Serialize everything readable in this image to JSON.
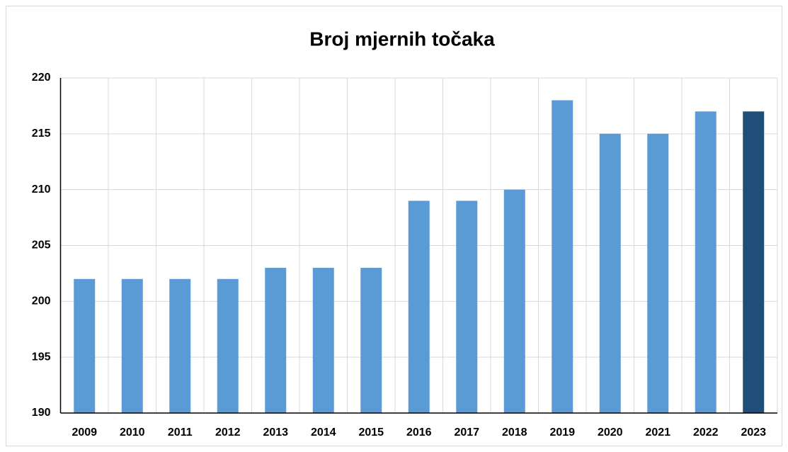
{
  "chart_data": {
    "type": "bar",
    "title": "Broj mjernih točaka",
    "categories": [
      "2009",
      "2010",
      "2011",
      "2012",
      "2013",
      "2014",
      "2015",
      "2016",
      "2017",
      "2018",
      "2019",
      "2020",
      "2021",
      "2022",
      "2023"
    ],
    "values": [
      202,
      202,
      202,
      202,
      203,
      203,
      203,
      209,
      209,
      210,
      218,
      215,
      215,
      217,
      217
    ],
    "colors": [
      "#5b9bd5",
      "#5b9bd5",
      "#5b9bd5",
      "#5b9bd5",
      "#5b9bd5",
      "#5b9bd5",
      "#5b9bd5",
      "#5b9bd5",
      "#5b9bd5",
      "#5b9bd5",
      "#5b9bd5",
      "#5b9bd5",
      "#5b9bd5",
      "#5b9bd5",
      "#1f4e79"
    ],
    "ylim": [
      190,
      220
    ],
    "yticks": [
      190,
      195,
      200,
      205,
      210,
      215,
      220
    ],
    "grid": true
  }
}
